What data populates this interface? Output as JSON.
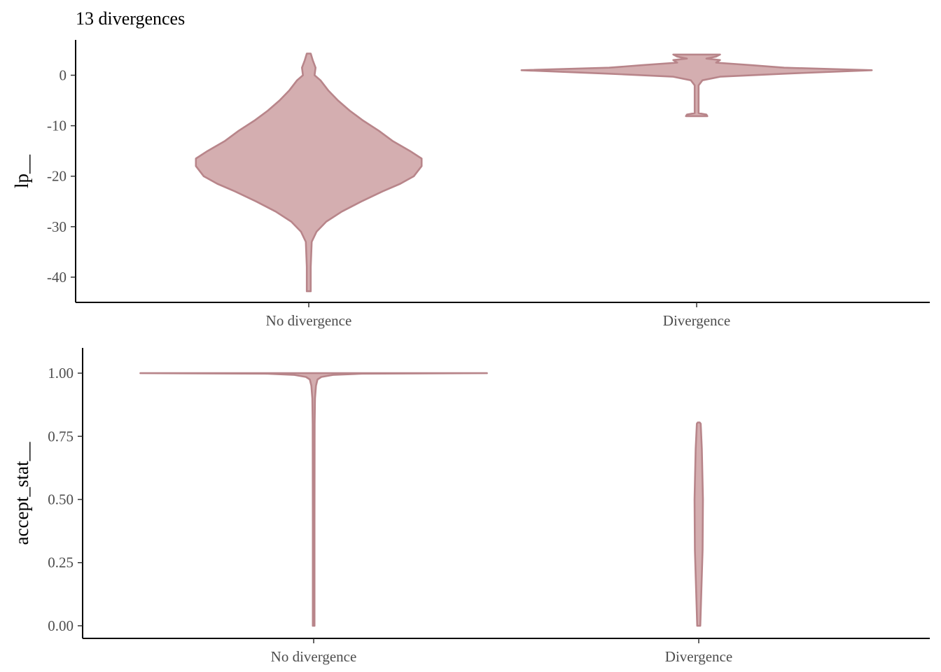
{
  "chart_data": [
    {
      "type": "violin",
      "title": "13 divergences",
      "xlabel": "",
      "ylabel": "lp__",
      "categories": [
        "No divergence",
        "Divergence"
      ],
      "ylim": [
        -45,
        7
      ],
      "yticks": [
        0,
        -10,
        -20,
        -30,
        -40
      ],
      "ytick_labels": [
        "0",
        "-10",
        "-20",
        "-30",
        "-40"
      ],
      "violins": [
        {
          "category": "No divergence",
          "range": [
            -42.8,
            4.3
          ],
          "density": [
            [
              -42.8,
              0.01
            ],
            [
              -38,
              0.01
            ],
            [
              -33,
              0.015
            ],
            [
              -31,
              0.04
            ],
            [
              -29,
              0.09
            ],
            [
              -27,
              0.17
            ],
            [
              -25,
              0.27
            ],
            [
              -23,
              0.38
            ],
            [
              -21.5,
              0.47
            ],
            [
              -20,
              0.54
            ],
            [
              -18,
              0.58
            ],
            [
              -16.5,
              0.58
            ],
            [
              -15,
              0.52
            ],
            [
              -13,
              0.43
            ],
            [
              -11,
              0.36
            ],
            [
              -9,
              0.28
            ],
            [
              -7,
              0.21
            ],
            [
              -5,
              0.15
            ],
            [
              -3,
              0.1
            ],
            [
              -1,
              0.06
            ],
            [
              0,
              0.03
            ],
            [
              1.5,
              0.035
            ],
            [
              3,
              0.02
            ],
            [
              4.3,
              0.01
            ]
          ]
        },
        {
          "category": "Divergence",
          "range": [
            -8.1,
            4.1
          ],
          "density": [
            [
              -8.1,
              0.055
            ],
            [
              -7.8,
              0.05
            ],
            [
              -7.5,
              0.01
            ],
            [
              -5,
              0.01
            ],
            [
              -2,
              0.01
            ],
            [
              -1,
              0.03
            ],
            [
              -0.3,
              0.12
            ],
            [
              0.3,
              0.45
            ],
            [
              1,
              0.9
            ],
            [
              1.5,
              0.45
            ],
            [
              2,
              0.28
            ],
            [
              2.5,
              0.1
            ],
            [
              3,
              0.12
            ],
            [
              3.3,
              0.05
            ],
            [
              3.7,
              0.1
            ],
            [
              4.1,
              0.12
            ]
          ]
        }
      ]
    },
    {
      "type": "violin",
      "title": "",
      "xlabel": "",
      "ylabel": "accept_stat__",
      "categories": [
        "No divergence",
        "Divergence"
      ],
      "ylim": [
        -0.05,
        1.1
      ],
      "yticks": [
        0,
        0.25,
        0.5,
        0.75,
        1.0
      ],
      "ytick_labels": [
        "0.00",
        "0.25",
        "0.50",
        "0.75",
        "1.00"
      ],
      "violins": [
        {
          "category": "No divergence",
          "range": [
            0.0,
            1.0
          ],
          "density": [
            [
              0,
              0.003
            ],
            [
              0.4,
              0.004
            ],
            [
              0.8,
              0.005
            ],
            [
              0.9,
              0.007
            ],
            [
              0.95,
              0.012
            ],
            [
              0.975,
              0.02
            ],
            [
              0.985,
              0.04
            ],
            [
              0.993,
              0.1
            ],
            [
              0.998,
              0.25
            ],
            [
              1.0,
              0.9
            ]
          ]
        },
        {
          "category": "Divergence",
          "range": [
            0.0,
            0.805
          ],
          "density": [
            [
              0,
              0.008
            ],
            [
              0.1,
              0.012
            ],
            [
              0.3,
              0.02
            ],
            [
              0.5,
              0.022
            ],
            [
              0.7,
              0.016
            ],
            [
              0.8,
              0.01
            ],
            [
              0.805,
              0.005
            ]
          ]
        }
      ]
    }
  ]
}
